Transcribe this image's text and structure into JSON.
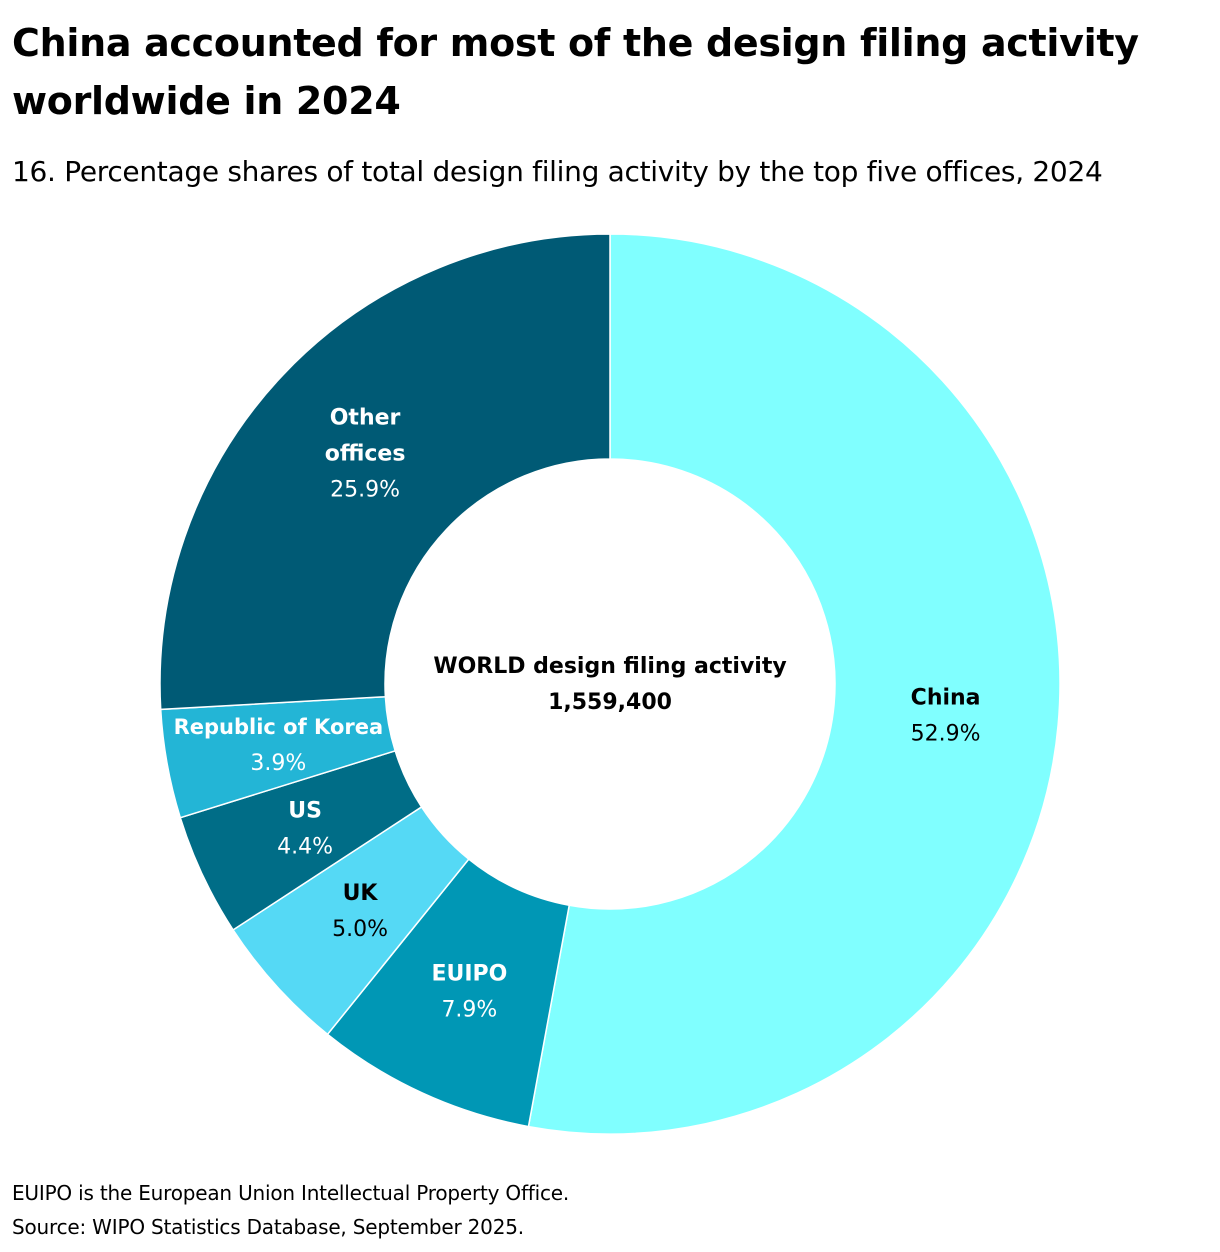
{
  "title": "China accounted for most of the design filing activity worldwide in 2024",
  "subtitle": "16. Percentage shares of total design filing activity by the top five offices, 2024",
  "center_label": {
    "line1": "WORLD design filing activity",
    "line2": "1,559,400"
  },
  "chart_data": {
    "type": "pie",
    "variant": "donut",
    "title": "China accounted for most of the design filing activity worldwide in 2024",
    "subtitle": "16. Percentage shares of total design filing activity by the top five offices, 2024",
    "categories": [
      "China",
      "EUIPO",
      "UK",
      "US",
      "Republic of Korea",
      "Other offices"
    ],
    "values": [
      52.9,
      7.9,
      5.0,
      4.4,
      3.9,
      25.9
    ],
    "value_labels": [
      "52.9%",
      "7.9%",
      "5.0%",
      "4.4%",
      "3.9%",
      "25.9%"
    ],
    "colors": [
      "#80ffff",
      "#0097b5",
      "#55d9f5",
      "#006d87",
      "#23b5d6",
      "#005a75"
    ],
    "label_colors": [
      "#000000",
      "#ffffff",
      "#000000",
      "#ffffff",
      "#ffffff",
      "#ffffff"
    ],
    "label_lines": [
      [
        "China"
      ],
      [
        "EUIPO"
      ],
      [
        "UK"
      ],
      [
        "US"
      ],
      [
        "Republic of Korea"
      ],
      [
        "Other",
        "offices"
      ]
    ],
    "center_total": "1,559,400"
  },
  "footer": {
    "note": "EUIPO is the European Union Intellectual Property Office.",
    "source": "Source: WIPO Statistics Database, September 2025."
  }
}
